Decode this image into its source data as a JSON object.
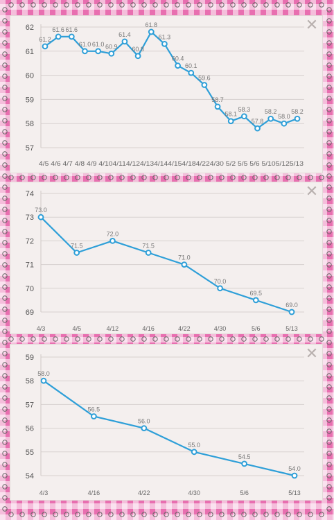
{
  "colors": {
    "line": "#2e9fd8",
    "background_pattern": "#e86fb0",
    "panel": "#f4efee",
    "grid": "#d7d1cf"
  },
  "close_icon_glyph": "✕",
  "chart_data": [
    {
      "type": "line",
      "x": [
        "4/5",
        "4/6",
        "4/7",
        "4/8",
        "4/9",
        "4/10",
        "4/11",
        "4/12",
        "4/13",
        "4/14",
        "4/15",
        "4/18",
        "4/22",
        "4/30",
        "5/2",
        "5/5",
        "5/6",
        "5/10",
        "5/12",
        "5/13"
      ],
      "x_tick_text": "4/5 4/6 4/7 4/8 4/9 4/104/114/124/134/144/154/184/224/30 5/2 5/5 5/6 5/105/125/13",
      "series": [
        {
          "values": [
            61.2,
            61.6,
            61.6,
            61.0,
            61.0,
            60.9,
            61.4,
            60.8,
            61.8,
            61.3,
            60.4,
            60.1,
            59.6,
            58.7,
            58.1,
            58.3,
            57.8,
            58.2,
            58.0,
            58.2
          ]
        }
      ],
      "data_labels": [
        "61.2",
        "61.6",
        "61.6",
        "61.0",
        "61.0",
        "60.9",
        "61.4",
        "60.8",
        "61.8",
        "61.3",
        "60.4",
        "60.1",
        "59.6",
        "58.7",
        "58.1",
        "58.3",
        "57.8",
        "58.2",
        "58.0",
        "58.2"
      ],
      "y_ticks": [
        "62",
        "61",
        "60",
        "59",
        "58",
        "57"
      ],
      "ylim": [
        57,
        62
      ],
      "grid": true,
      "title": "",
      "xlabel": "",
      "ylabel": ""
    },
    {
      "type": "line",
      "x": [
        "4/3",
        "4/5",
        "4/12",
        "4/16",
        "4/22",
        "4/30",
        "5/6",
        "5/13"
      ],
      "series": [
        {
          "values": [
            73.0,
            71.5,
            72.0,
            71.5,
            71.0,
            70.0,
            69.5,
            69.0
          ]
        }
      ],
      "data_labels": [
        "73.0",
        "71.5",
        "72.0",
        "71.5",
        "71.0",
        "70.0",
        "69.5",
        "69.0"
      ],
      "y_ticks": [
        "74",
        "73",
        "72",
        "71",
        "70",
        "69"
      ],
      "ylim": [
        69,
        74
      ],
      "grid": true,
      "title": "",
      "xlabel": "",
      "ylabel": ""
    },
    {
      "type": "line",
      "x": [
        "4/3",
        "4/16",
        "4/22",
        "4/30",
        "5/6",
        "5/13"
      ],
      "series": [
        {
          "values": [
            58.0,
            56.5,
            56.0,
            55.0,
            54.5,
            54.0
          ]
        }
      ],
      "data_labels": [
        "58.0",
        "56.5",
        "56.0",
        "55.0",
        "54.5",
        "54.0"
      ],
      "y_ticks": [
        "59",
        "58",
        "57",
        "56",
        "55",
        "54"
      ],
      "ylim": [
        54,
        59
      ],
      "grid": true,
      "title": "",
      "xlabel": "",
      "ylabel": ""
    }
  ]
}
